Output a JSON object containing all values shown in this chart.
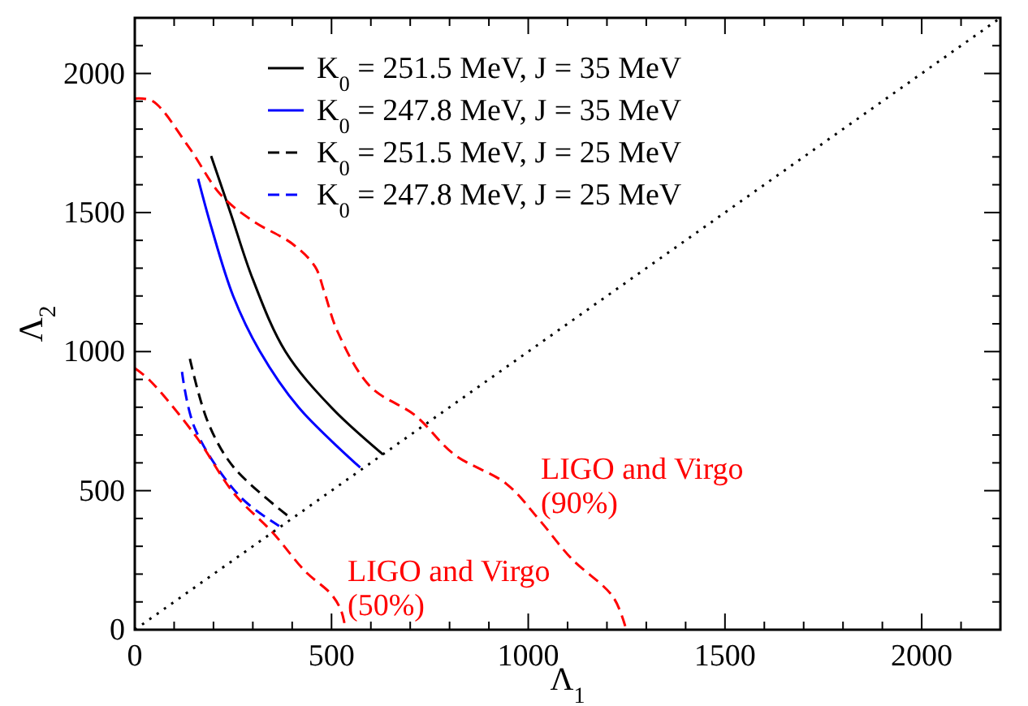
{
  "chart_data": {
    "type": "line",
    "xlabel": "Λ$_{1}$",
    "ylabel": "Λ$_{2}$",
    "xlim": [
      0,
      2200
    ],
    "ylim": [
      0,
      2200
    ],
    "xticks": [
      0,
      500,
      1000,
      1500,
      2000
    ],
    "yticks": [
      0,
      500,
      1000,
      1500,
      2000
    ],
    "grid": false,
    "legend": "top",
    "marker": "none",
    "series": [
      {
        "name": "K$_{0}$ = 251.5 MeV, J = 35 MeV",
        "color": "#000000",
        "line_style": "solid",
        "x": [
          194,
          243,
          300,
          383,
          499,
          631
        ],
        "values": [
          1703,
          1500,
          1260,
          1000,
          800,
          630
        ]
      },
      {
        "name": "K$_{0}$ = 247.8 MeV, J = 35 MeV",
        "color": "#0000ff",
        "line_style": "solid",
        "x": [
          161,
          194,
          250,
          317,
          416,
          573
        ],
        "values": [
          1621,
          1450,
          1200,
          1003,
          800,
          583
        ]
      },
      {
        "name": "K$_{0}$ = 251.5 MeV, J = 25 MeV",
        "color": "#000000",
        "line_style": "dashed",
        "x": [
          140,
          186,
          252,
          396
        ],
        "values": [
          974,
          746,
          583,
          402
        ]
      },
      {
        "name": "K$_{0}$ = 247.8 MeV, J = 25 MeV",
        "color": "#0000ff",
        "line_style": "dashed",
        "x": [
          120,
          153,
          268,
          367
        ],
        "values": [
          927,
          723,
          478,
          373
        ]
      },
      {
        "color": "#ff0000",
        "line_style": "dashed",
        "x": [
          0,
          37,
          153,
          252,
          350,
          433,
          499,
          524,
          536
        ],
        "values": [
          940,
          898,
          700,
          490,
          350,
          210,
          128,
          70,
          0
        ]
      },
      {
        "color": "#ff0000",
        "line_style": "dashed",
        "x": [
          0,
          45,
          136,
          219,
          301,
          400,
          458,
          482,
          515,
          598,
          713,
          812,
          944,
          1027,
          1109,
          1216,
          1249
        ],
        "values": [
          1910,
          1901,
          1738,
          1563,
          1469,
          1388,
          1306,
          1213,
          1073,
          875,
          770,
          630,
          525,
          397,
          257,
          117,
          0
        ]
      },
      {
        "color": "#000000",
        "line_style": "dotted",
        "x": [
          0,
          2200
        ],
        "values": [
          0,
          2200
        ]
      }
    ],
    "annotations": [
      "LIGO and Virgo\n(90%)",
      "LIGO and Virgo\n(50%)"
    ]
  }
}
